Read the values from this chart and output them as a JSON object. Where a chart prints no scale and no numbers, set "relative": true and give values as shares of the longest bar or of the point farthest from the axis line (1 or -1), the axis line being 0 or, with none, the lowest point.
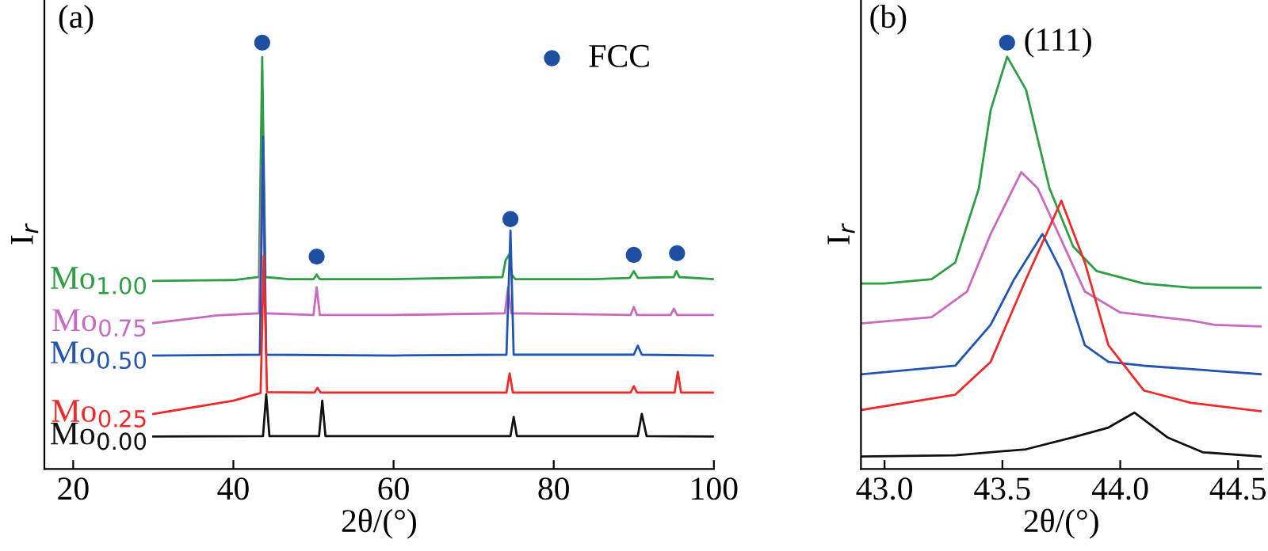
{
  "chart_data": [
    {
      "type": "line",
      "title": "(a)",
      "xlabel": "2θ/(°)",
      "ylabel": "I$_{r}$",
      "relative": true,
      "xlim": [
        16.4,
        100
      ],
      "xticks": [
        20,
        40,
        60,
        80,
        100
      ],
      "tick_labels": "x",
      "legend": "top right",
      "series": [
        {
          "name": "Mo$_{1.00}$",
          "color": "#2e9e44",
          "x": [
            30,
            40,
            43.2,
            43.6,
            44.0,
            47,
            50.0,
            50.4,
            50.8,
            60,
            73.6,
            74.0,
            74.4,
            74.8,
            75.2,
            85,
            89.5,
            90,
            90.5,
            95.0,
            95.3,
            95.7,
            100
          ],
          "values": [
            0.441,
            0.443,
            0.45,
            0.966,
            0.45,
            0.445,
            0.445,
            0.456,
            0.445,
            0.445,
            0.45,
            0.49,
            0.502,
            0.455,
            0.445,
            0.445,
            0.448,
            0.464,
            0.448,
            0.45,
            0.464,
            0.45,
            0.445
          ]
        },
        {
          "name": "Mo$_{0.75}$",
          "color": "#c86bc0",
          "x": [
            30,
            38,
            43.2,
            43.6,
            44.0,
            50.0,
            50.4,
            50.8,
            60,
            73.9,
            74.3,
            74.7,
            89.6,
            90,
            90.4,
            94.6,
            95,
            95.4,
            100
          ],
          "values": [
            0.342,
            0.36,
            0.365,
            0.715,
            0.365,
            0.361,
            0.426,
            0.361,
            0.361,
            0.365,
            0.426,
            0.365,
            0.361,
            0.38,
            0.361,
            0.361,
            0.376,
            0.361,
            0.361
          ]
        },
        {
          "name": "Mo$_{0.50}$",
          "color": "#2255b0",
          "x": [
            30,
            43.3,
            43.7,
            44.1,
            60,
            74.1,
            74.6,
            75.0,
            90.0,
            90.5,
            91.0,
            100
          ],
          "values": [
            0.266,
            0.268,
            0.78,
            0.268,
            0.266,
            0.268,
            0.559,
            0.268,
            0.268,
            0.289,
            0.268,
            0.266
          ]
        },
        {
          "name": "Mo$_{0.25}$",
          "color": "#ee2a2a",
          "x": [
            30,
            40,
            43.4,
            43.8,
            44.2,
            50.1,
            50.5,
            50.9,
            74.1,
            74.5,
            74.9,
            89.6,
            90,
            90.4,
            95.1,
            95.5,
            95.9,
            100
          ],
          "values": [
            0.129,
            0.16,
            0.178,
            0.5,
            0.18,
            0.179,
            0.19,
            0.179,
            0.179,
            0.224,
            0.179,
            0.179,
            0.194,
            0.179,
            0.179,
            0.228,
            0.179,
            0.179
          ]
        },
        {
          "name": "Mo$_{0.00}$",
          "color": "#111111",
          "x": [
            30,
            43.7,
            44.1,
            44.5,
            50.7,
            51.1,
            51.5,
            74.6,
            75.0,
            75.4,
            90.5,
            91,
            91.6,
            100
          ],
          "values": [
            0.076,
            0.077,
            0.175,
            0.077,
            0.077,
            0.16,
            0.077,
            0.077,
            0.122,
            0.077,
            0.077,
            0.129,
            0.077,
            0.076
          ]
        },
        {
          "name": "FCC",
          "type": "scatter",
          "marker": "circle",
          "color": "#1f4fa0",
          "x": [
            43.6,
            50.4,
            74.6,
            90,
            95.4
          ],
          "values": [
            1.0,
            0.498,
            0.586,
            0.502,
            0.506
          ]
        }
      ]
    },
    {
      "type": "line",
      "title": "(b)",
      "xlabel": "2θ/(°)",
      "ylabel": "I$_{r}$",
      "relative": true,
      "xlim": [
        42.9,
        44.6
      ],
      "xticks": [
        {
          "value": 43,
          "label": "43.0"
        },
        {
          "value": 43.5,
          "label": "43.5"
        },
        {
          "value": 44,
          "label": "44.0"
        },
        {
          "value": 44.5,
          "label": "44.5"
        }
      ],
      "tick_labels": "x",
      "series": [
        {
          "color": "#2e9e44",
          "x": [
            42.9,
            43.0,
            43.2,
            43.3,
            43.4,
            43.45,
            43.52,
            43.6,
            43.7,
            43.8,
            43.9,
            44.1,
            44.3,
            44.6
          ],
          "values": [
            0.435,
            0.435,
            0.445,
            0.484,
            0.658,
            0.841,
            0.967,
            0.89,
            0.658,
            0.522,
            0.464,
            0.435,
            0.425,
            0.425
          ]
        },
        {
          "color": "#c86bc0",
          "x": [
            42.9,
            43.2,
            43.35,
            43.45,
            43.58,
            43.65,
            43.75,
            43.85,
            44.0,
            44.3,
            44.4,
            44.6
          ],
          "values": [
            0.341,
            0.356,
            0.416,
            0.551,
            0.696,
            0.658,
            0.537,
            0.416,
            0.367,
            0.348,
            0.338,
            0.334
          ]
        },
        {
          "color": "#2255b0",
          "x": [
            42.9,
            43.3,
            43.45,
            43.55,
            43.67,
            43.75,
            43.85,
            43.95,
            44.1,
            44.6
          ],
          "values": [
            0.222,
            0.242,
            0.338,
            0.445,
            0.551,
            0.464,
            0.29,
            0.251,
            0.242,
            0.222
          ]
        },
        {
          "color": "#ee2a2a",
          "x": [
            42.9,
            43.3,
            43.45,
            43.6,
            43.75,
            43.85,
            43.95,
            44.1,
            44.3,
            44.6
          ],
          "values": [
            0.138,
            0.174,
            0.251,
            0.445,
            0.629,
            0.484,
            0.29,
            0.184,
            0.155,
            0.135
          ]
        },
        {
          "color": "#111111",
          "x": [
            42.9,
            43.3,
            43.6,
            43.8,
            43.95,
            44.06,
            44.2,
            44.35,
            44.6
          ],
          "values": [
            0.029,
            0.032,
            0.046,
            0.074,
            0.097,
            0.132,
            0.074,
            0.039,
            0.029
          ]
        },
        {
          "name": "(111)",
          "type": "scatter",
          "marker": "circle",
          "color": "#1f4fa0",
          "x": [
            43.52
          ],
          "values": [
            1.0
          ]
        }
      ]
    }
  ]
}
